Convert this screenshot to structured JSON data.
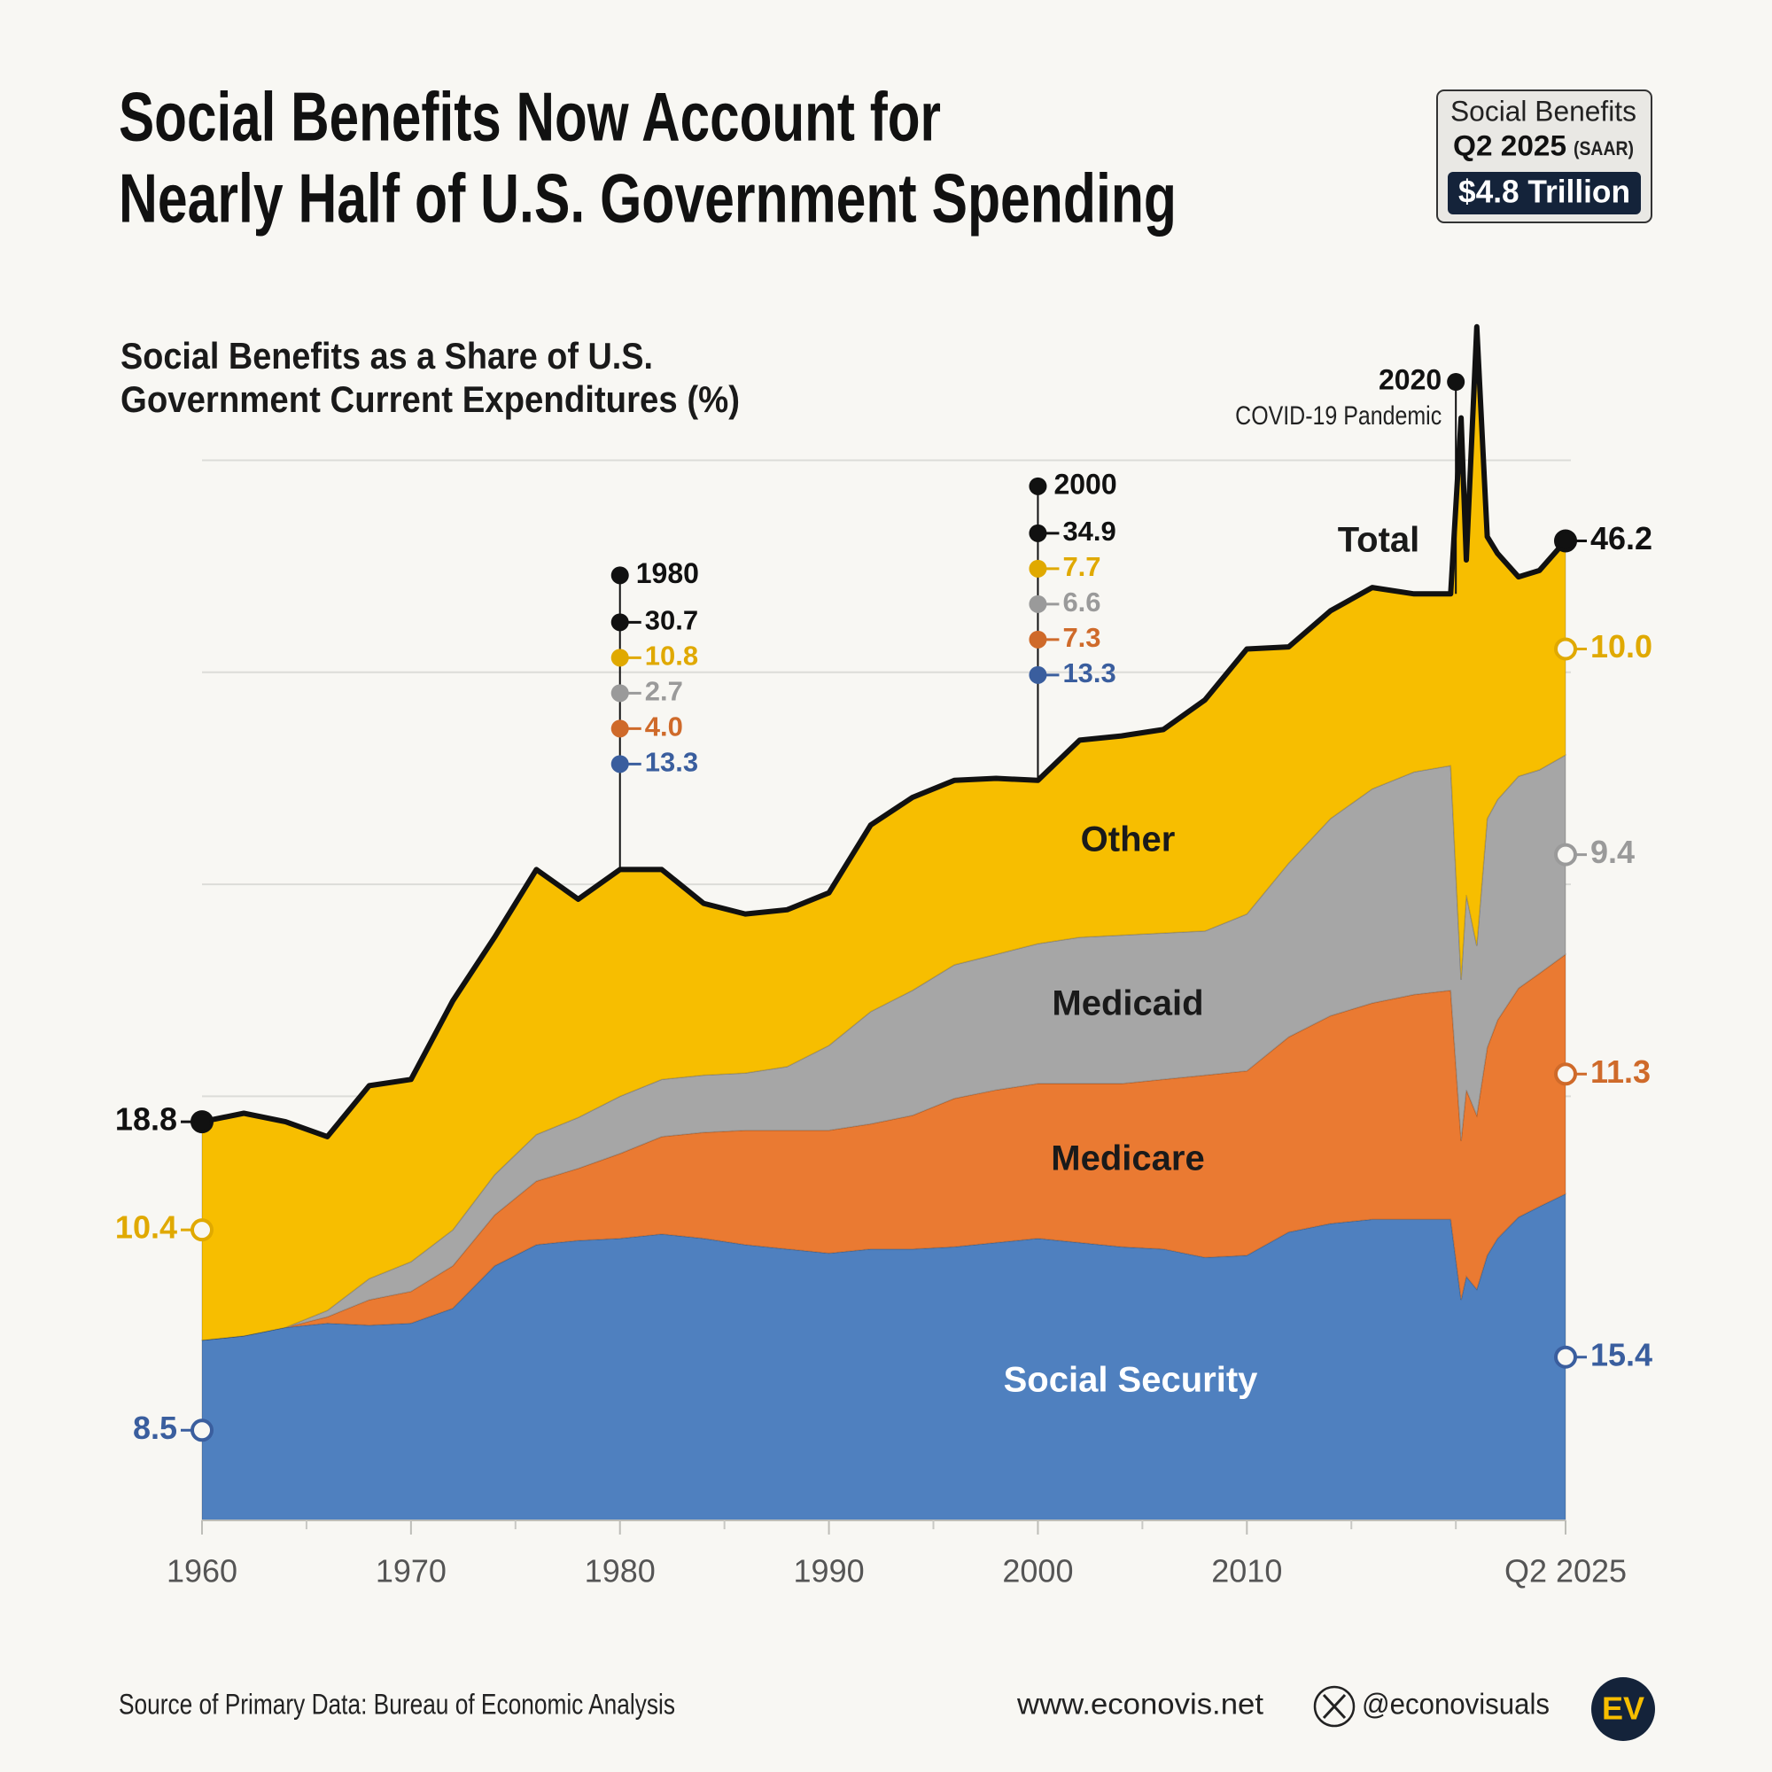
{
  "chart_data": {
    "type": "area",
    "stacked": true,
    "title": [
      "Social Benefits Now Account for",
      "Nearly Half of U.S. Government Spending"
    ],
    "subtitle": [
      "Social Benefits as a Share of U.S.",
      "Government Current Expenditures (%)"
    ],
    "callout": {
      "title": "Social Benefits",
      "period": "Q2 2025",
      "note": "(SAAR)",
      "value": "$4.8 Trillion"
    },
    "x": [
      1960,
      1962,
      1964,
      1966,
      1968,
      1970,
      1972,
      1974,
      1976,
      1978,
      1980,
      1982,
      1984,
      1986,
      1988,
      1990,
      1992,
      1994,
      1996,
      1998,
      2000,
      2002,
      2004,
      2006,
      2008,
      2010,
      2012,
      2014,
      2016,
      2018,
      2019.75,
      2020.25,
      2020.5,
      2021,
      2021.5,
      2022,
      2023,
      2024,
      2025.25
    ],
    "series": [
      {
        "name": "Social Security",
        "color": "#4f80bf",
        "label_color": "#3a5e9e",
        "name_color": "#ffffff",
        "values": [
          8.5,
          8.7,
          9.1,
          9.3,
          9.2,
          9.3,
          10.0,
          12.0,
          13.0,
          13.2,
          13.3,
          13.5,
          13.3,
          13.0,
          12.8,
          12.6,
          12.8,
          12.8,
          12.9,
          13.1,
          13.3,
          13.1,
          12.9,
          12.8,
          12.4,
          12.5,
          13.6,
          14.0,
          14.2,
          14.2,
          14.2,
          10.4,
          11.5,
          10.9,
          12.5,
          13.3,
          14.3,
          14.8,
          15.4
        ]
      },
      {
        "name": "Medicare",
        "color": "#ea7a32",
        "label_color": "#cf6a2a",
        "name_color": "#1a1a1a",
        "values": [
          0,
          0,
          0,
          0.3,
          1.2,
          1.5,
          2.0,
          2.4,
          3.0,
          3.4,
          4.0,
          4.6,
          5.0,
          5.4,
          5.6,
          5.8,
          5.9,
          6.3,
          7.0,
          7.2,
          7.3,
          7.5,
          7.7,
          8.0,
          8.6,
          8.7,
          9.2,
          9.8,
          10.2,
          10.6,
          10.8,
          7.5,
          8.8,
          8.2,
          9.8,
          10.3,
          10.8,
          11.0,
          11.3
        ],
        "value_labels": [
          null,
          null,
          null,
          null,
          null,
          null,
          null,
          null,
          null,
          null,
          "4.0",
          null,
          null,
          null,
          null,
          null,
          null,
          null,
          null,
          null,
          null,
          null,
          null,
          null,
          null,
          null,
          null,
          null,
          null,
          null,
          null,
          null,
          null,
          null,
          null,
          null,
          null,
          null,
          null
        ]
      },
      {
        "name": "Medicaid",
        "color": "#a6a6a6",
        "label_color": "#9a9a9a",
        "name_color": "#1a1a1a",
        "values": [
          0,
          0,
          0,
          0.3,
          1.0,
          1.4,
          1.7,
          1.9,
          2.2,
          2.4,
          2.7,
          2.7,
          2.7,
          2.7,
          3.0,
          4.0,
          5.3,
          5.9,
          6.3,
          6.4,
          6.6,
          6.9,
          7.0,
          6.9,
          6.8,
          7.4,
          8.2,
          9.3,
          10.1,
          10.5,
          10.6,
          7.6,
          9.2,
          8.0,
          10.8,
          10.4,
          10.0,
          9.6,
          9.4
        ]
      },
      {
        "name": "Other",
        "color": "#f7be00",
        "label_color": "#e0a900",
        "name_color": "#1a1a1a",
        "values": [
          10.4,
          10.5,
          9.7,
          8.2,
          9.1,
          8.6,
          10.8,
          11.2,
          12.5,
          10.3,
          10.8,
          9.9,
          8.1,
          7.5,
          7.4,
          7.2,
          8.8,
          9.1,
          8.7,
          8.3,
          7.7,
          9.3,
          9.4,
          9.6,
          10.9,
          12.5,
          10.2,
          9.8,
          9.5,
          8.4,
          8.1,
          26.5,
          15.8,
          29.2,
          13.3,
          11.6,
          9.4,
          9.4,
          10.0
        ],
        "value_labels": [
          null,
          null,
          null,
          null,
          null,
          null,
          null,
          null,
          null,
          null,
          null,
          null,
          null,
          null,
          null,
          null,
          null,
          null,
          null,
          null,
          null,
          null,
          null,
          null,
          null,
          null,
          null,
          null,
          null,
          null,
          null,
          null,
          null,
          null,
          null,
          null,
          null,
          null,
          "10.0"
        ]
      },
      {
        "name": "Total",
        "type": "line",
        "color": "#111111",
        "label_color": "#111111",
        "name_color": "#1a1a1a",
        "values": [
          18.8,
          19.2,
          18.8,
          18.1,
          20.5,
          20.8,
          24.5,
          27.5,
          30.7,
          29.3,
          30.7,
          30.7,
          29.1,
          28.6,
          28.8,
          29.6,
          32.8,
          34.1,
          34.9,
          35.0,
          34.9,
          36.8,
          37.0,
          37.3,
          38.7,
          41.1,
          41.2,
          42.9,
          44.0,
          43.7,
          43.7,
          52.0,
          45.3,
          56.3,
          46.4,
          45.6,
          44.5,
          44.8,
          46.2
        ]
      }
    ],
    "annotations": [
      {
        "x": 1980
      },
      {
        "x": 2000
      },
      {
        "x": 2020,
        "text": "COVID-19 Pandemic"
      }
    ],
    "xlim": [
      1960,
      2025.25
    ],
    "xticks": [
      1960,
      1970,
      1980,
      1990,
      2000,
      2010,
      {
        "value": 2025.25,
        "label": "Q2 2025"
      }
    ],
    "xminor": [
      1965,
      1975,
      1985,
      1995,
      2005,
      2015,
      2020
    ],
    "ylim": [
      0,
      57
    ],
    "yticks": [
      20,
      30,
      40,
      50
    ],
    "grid": true,
    "source": "Source of Primary Data: Bureau of Economic Analysis",
    "website": "www.econovis.net",
    "handle": "@econovisuals",
    "logo": "EV"
  }
}
